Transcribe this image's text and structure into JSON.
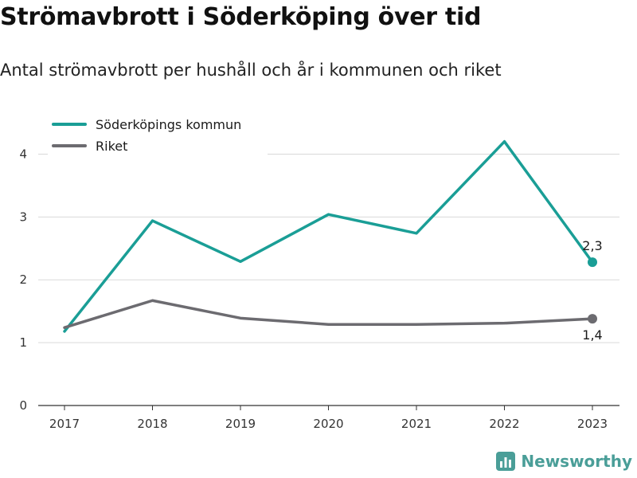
{
  "header": {
    "title": "Strömavbrott i Söderköping över tid",
    "subtitle": "Antal strömavbrott per hushåll och år i kommunen och riket"
  },
  "brand": {
    "name": "Newsworthy",
    "icon": "newsworthy-logo-icon",
    "color": "#4a9e98"
  },
  "chart_data": {
    "type": "line",
    "title": "Strömavbrott i Söderköping över tid",
    "subtitle": "Antal strömavbrott per hushåll och år i kommunen och riket",
    "xlabel": "",
    "ylabel": "",
    "categories": [
      "2017",
      "2018",
      "2019",
      "2020",
      "2021",
      "2022",
      "2023"
    ],
    "ylim": [
      0,
      4.5
    ],
    "yticks": [
      0,
      1,
      2,
      3,
      4
    ],
    "grid": true,
    "legend_position": "top-left",
    "series": [
      {
        "name": "Söderköpings kommun",
        "color": "#1a9e96",
        "values": [
          1.18,
          2.94,
          2.29,
          3.04,
          2.74,
          4.2,
          2.28
        ],
        "end_label": "2,3"
      },
      {
        "name": "Riket",
        "color": "#6c6b70",
        "values": [
          1.24,
          1.67,
          1.39,
          1.29,
          1.29,
          1.31,
          1.38
        ],
        "end_label": "1,4"
      }
    ]
  }
}
